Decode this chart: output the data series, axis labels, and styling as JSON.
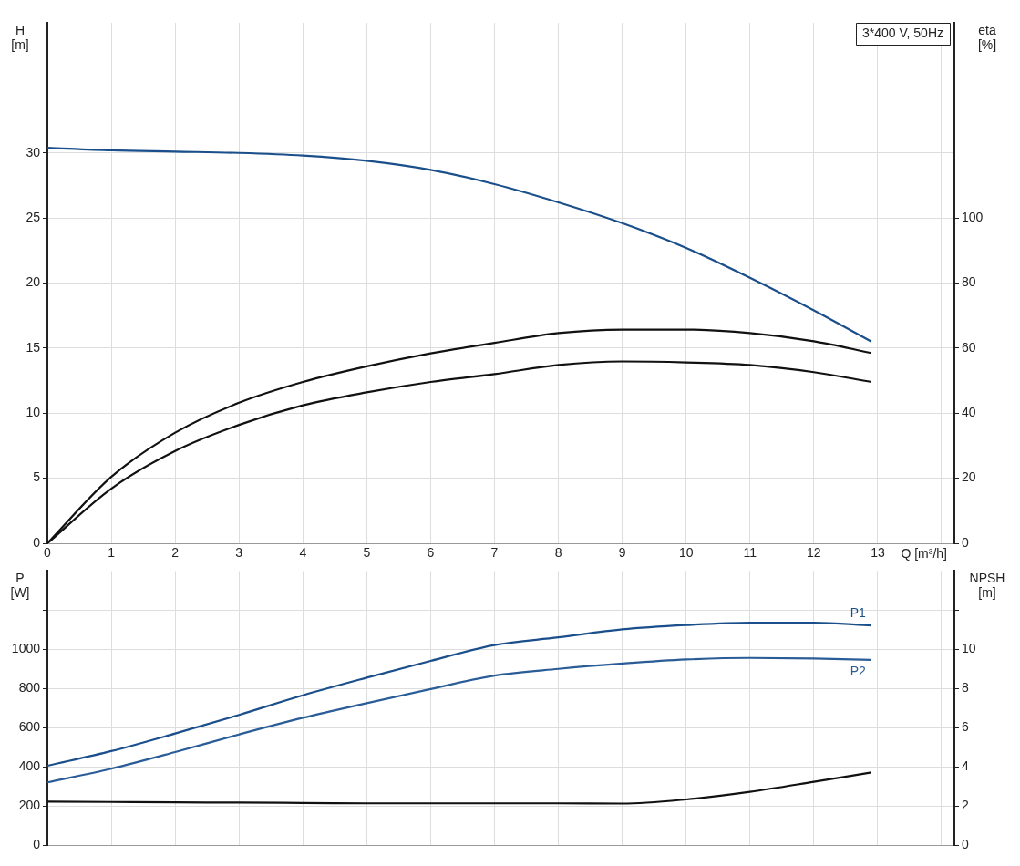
{
  "chart_data": [
    {
      "type": "line",
      "annotations": [
        "3*400 V, 50Hz"
      ],
      "xlabel": "Q [m³/h]",
      "ylabel": "H [m]",
      "y2label": "eta [%]",
      "x": [
        0,
        1,
        2,
        3,
        4,
        5,
        6,
        7,
        8,
        9,
        10,
        11,
        12,
        12.9
      ],
      "xlim": [
        0,
        14.2
      ],
      "xticks": [
        0,
        1,
        2,
        3,
        4,
        5,
        6,
        7,
        8,
        9,
        10,
        11,
        12,
        13,
        {
          "value": 14,
          "label": null
        }
      ],
      "ylim": [
        0,
        40
      ],
      "yticks": [
        0,
        5,
        10,
        15,
        20,
        25,
        30,
        {
          "value": 35,
          "label": null
        }
      ],
      "y2lim": [
        0,
        160
      ],
      "y2ticks": [
        0,
        20,
        40,
        60,
        80,
        100
      ],
      "grid": true,
      "legend": false,
      "marker": "none",
      "series": [
        {
          "color": "#1a4f8b",
          "values": [
            30.4,
            30.2,
            30.1,
            30.0,
            29.8,
            29.4,
            28.7,
            27.6,
            26.2,
            24.6,
            22.7,
            20.4,
            17.9,
            15.5
          ]
        },
        {
          "color": "#111111",
          "axis": "y2",
          "values": [
            0,
            20.4,
            34,
            43.2,
            49.6,
            54.4,
            58.4,
            61.6,
            64.6,
            65.7,
            65.7,
            64.6,
            62.1,
            58.5
          ]
        },
        {
          "color": "#111111",
          "axis": "y2",
          "values": [
            0,
            16.8,
            28.4,
            36.4,
            42.4,
            46.4,
            49.6,
            52,
            54.8,
            55.9,
            55.6,
            54.8,
            52.6,
            49.6
          ]
        }
      ]
    },
    {
      "type": "line",
      "ylabel": "P [W]",
      "y2label": "NPSH [m]",
      "x": [
        0,
        1,
        2,
        3,
        4,
        5,
        6,
        7,
        8,
        9,
        10,
        11,
        12,
        12.9
      ],
      "xlim": [
        0,
        14.2
      ],
      "xticks": [
        0,
        1,
        2,
        3,
        4,
        5,
        6,
        7,
        8,
        9,
        10,
        11,
        12,
        13,
        14
      ],
      "tick_labels": "y",
      "ylim": [
        0,
        1400
      ],
      "yticks": [
        0,
        200,
        400,
        600,
        800,
        1000,
        {
          "value": 1200,
          "label": null
        }
      ],
      "y2lim": [
        0,
        14
      ],
      "y2ticks": [
        0,
        2,
        4,
        6,
        8,
        10,
        {
          "value": 12,
          "label": null
        }
      ],
      "grid": true,
      "legend": false,
      "marker": "none",
      "series": [
        {
          "name": "P1",
          "color": "#1a4f8b",
          "values": [
            405,
            480,
            570,
            665,
            765,
            855,
            941,
            1022,
            1061,
            1102,
            1124,
            1136,
            1136,
            1122
          ]
        },
        {
          "name": "P2",
          "color": "#2a5d98",
          "values": [
            320,
            390,
            475,
            565,
            650,
            725,
            797,
            866,
            900,
            927,
            948,
            956,
            953,
            946
          ]
        },
        {
          "color": "#111111",
          "axis": "y2",
          "values": [
            2.22,
            2.2,
            2.18,
            2.17,
            2.15,
            2.13,
            2.13,
            2.13,
            2.13,
            2.12,
            2.33,
            2.72,
            3.23,
            3.71
          ]
        }
      ]
    }
  ]
}
